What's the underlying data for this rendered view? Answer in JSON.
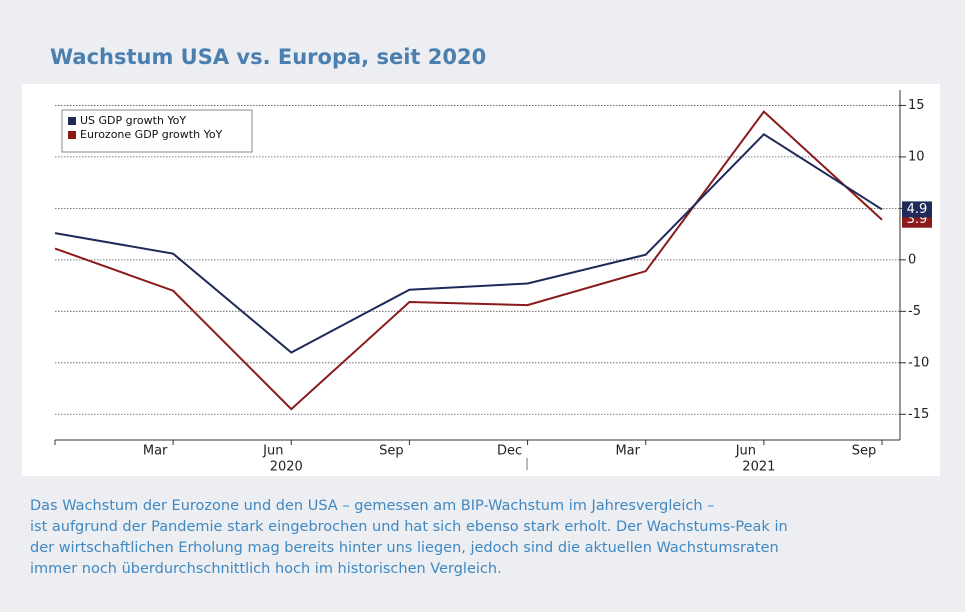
{
  "chart_data": {
    "type": "line",
    "title": "Wachstum USA vs. Europa, seit 2020",
    "categories": [
      null,
      "Mar",
      "Jun",
      "Sep",
      "Dec",
      "Mar",
      "Jun",
      "Sep"
    ],
    "years": [
      "2020",
      "2021"
    ],
    "series": [
      {
        "name": "US GDP growth YoY",
        "color": "#1f2a5a",
        "values": [
          2.6,
          0.6,
          -9.0,
          -2.9,
          -2.3,
          0.5,
          12.2,
          4.9
        ]
      },
      {
        "name": "Eurozone GDP growth YoY",
        "color": "#8b1a1a",
        "values": [
          1.1,
          -3.0,
          -14.5,
          -4.1,
          -4.4,
          -1.1,
          14.4,
          3.9
        ]
      }
    ],
    "ylim": [
      -17.5,
      16.5
    ],
    "yticks": [
      15,
      10,
      5,
      0,
      -5,
      -10,
      -15
    ],
    "grid": true,
    "legend": "top-left",
    "caption": [
      "Das Wachstum der Eurozone und den USA – gemessen am BIP-Wachstum im Jahresvergleich –",
      "ist aufgrund der Pandemie stark eingebrochen und hat sich ebenso stark erholt. Der Wachstums-Peak in",
      "der wirtschaftlichen Erholung mag bereits hinter uns liegen, jedoch sind die aktuellen Wachstumsraten",
      "immer noch überdurchschnittlich hoch im historischen Vergleich."
    ]
  }
}
